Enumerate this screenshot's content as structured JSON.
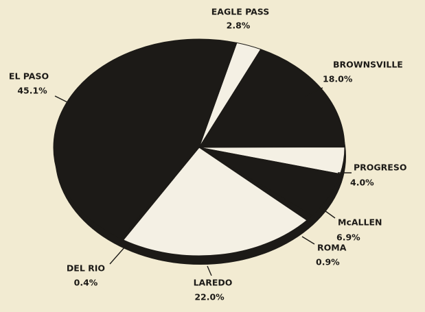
{
  "chart_data": {
    "type": "pie",
    "categories": [
      "EAGLE PASS",
      "BROWNSVILLE",
      "PROGRESO",
      "McALLEN",
      "ROMA",
      "LAREDO",
      "DEL RIO",
      "EL PASO"
    ],
    "values": [
      2.8,
      18.0,
      4.0,
      6.9,
      0.9,
      22.0,
      0.4,
      45.1
    ],
    "value_labels": [
      "2.8%",
      "18.0%",
      "4.0%",
      "6.9%",
      "0.9%",
      "22.0%",
      "0.4%",
      "45.1%"
    ],
    "colors": [
      "#f4f0e4",
      "#1c1a17",
      "#f4f0e4",
      "#1c1a17",
      "#1c1a17",
      "#f4f0e4",
      "#1c1a17",
      "#1c1a17"
    ]
  }
}
